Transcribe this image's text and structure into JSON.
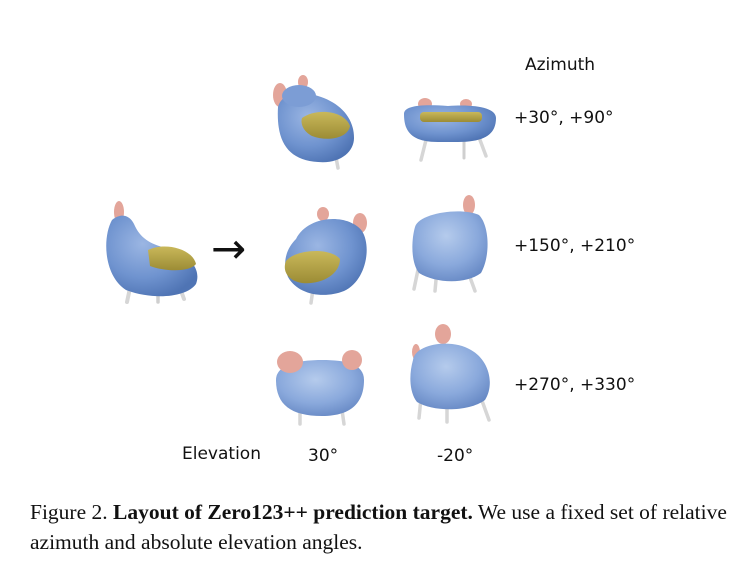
{
  "figure": {
    "azimuth_header": "Azimuth",
    "azimuth_rows": [
      "+30°, +90°",
      "+150°, +210°",
      "+270°, +330°"
    ],
    "elevation_label": "Elevation",
    "elevation_columns": [
      "30°",
      "-20°"
    ],
    "arrow_symbol": "→",
    "colors": {
      "chair_blue": "#6f93cf",
      "cushion_yellow": "#b8a84a",
      "ear_pink": "#e3a59a",
      "leg_gray": "#d9d9d9"
    }
  },
  "caption": {
    "label": "Figure 2.",
    "title": "Layout of Zero123++ prediction target.",
    "body": "We use a fixed set of relative azimuth and absolute elevation angles."
  }
}
